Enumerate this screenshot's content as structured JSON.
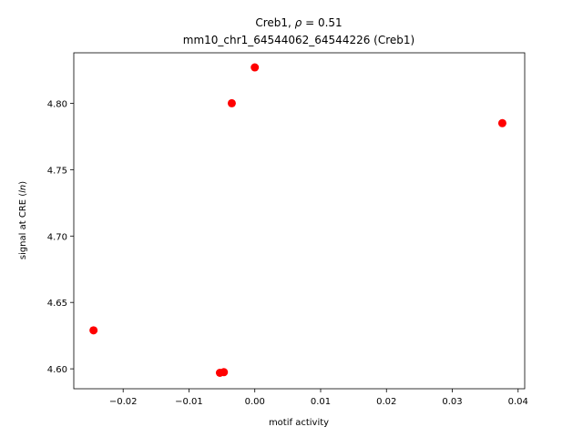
{
  "chart_data": {
    "type": "scatter",
    "title_line1_prefix": "Creb1, ",
    "title_line1_rho": "ρ",
    "title_line1_suffix": " = 0.51",
    "title_line2": "mm10_chr1_64544062_64544226 (Creb1)",
    "xlabel": "motif activity",
    "ylabel_prefix": "signal at CRE (",
    "ylabel_italic": "ln",
    "ylabel_suffix": ")",
    "xlim": [
      -0.0275,
      0.041
    ],
    "ylim": [
      4.585,
      4.838
    ],
    "xticks": [
      -0.02,
      -0.01,
      0.0,
      0.01,
      0.02,
      0.03,
      0.04
    ],
    "xtick_labels": [
      "−0.02",
      "−0.01",
      "0.00",
      "0.01",
      "0.02",
      "0.03",
      "0.04"
    ],
    "yticks": [
      4.6,
      4.65,
      4.7,
      4.75,
      4.8
    ],
    "ytick_labels": [
      "4.60",
      "4.65",
      "4.70",
      "4.75",
      "4.80"
    ],
    "point_color": "#ff0000",
    "points": [
      {
        "x": -0.0245,
        "y": 4.629
      },
      {
        "x": -0.0053,
        "y": 4.597
      },
      {
        "x": -0.0047,
        "y": 4.5975
      },
      {
        "x": -0.0035,
        "y": 4.8
      },
      {
        "x": 0.0,
        "y": 4.827
      },
      {
        "x": 0.0376,
        "y": 4.785
      }
    ],
    "grid": false,
    "legend": "none"
  }
}
